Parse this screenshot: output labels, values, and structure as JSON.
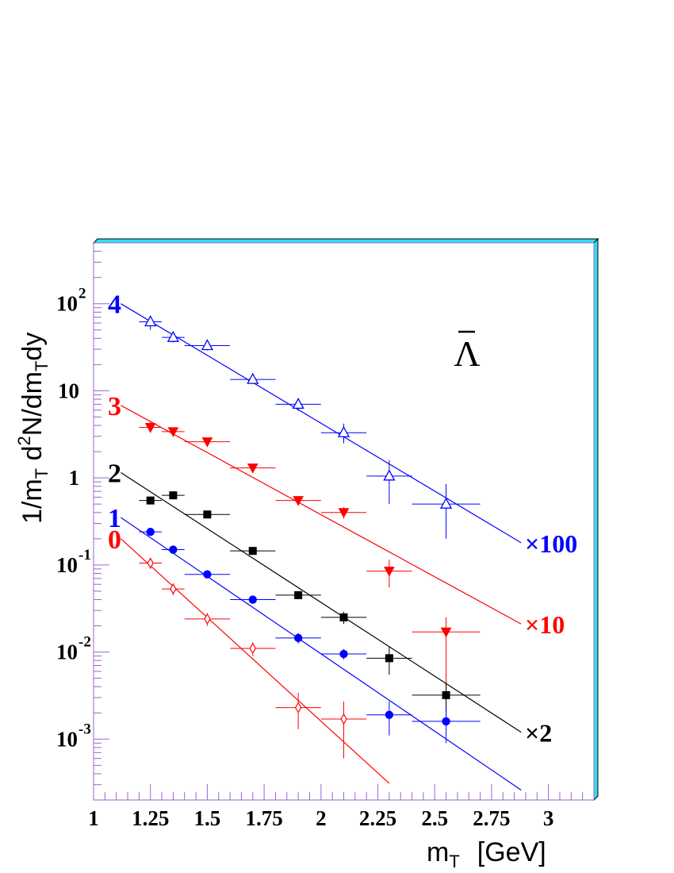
{
  "chart_data": {
    "type": "scatter",
    "title": "",
    "annotation": "Λ",
    "xlabel": "m",
    "xlabel_sub": "T",
    "xlabel_unit": "[GeV]",
    "ylabel": "1/m_T d^2N/dm_T dy",
    "ylabel_parts": [
      "1/m",
      "T",
      " d",
      "2",
      "N/dm",
      "T",
      "dy"
    ],
    "x_scale": "linear",
    "y_scale": "log",
    "xlim": [
      1.0,
      3.2
    ],
    "ylim": [
      0.0002,
      500
    ],
    "x_ticks": [
      {
        "v": 1.0,
        "label": "1"
      },
      {
        "v": 1.25,
        "label": "1.25"
      },
      {
        "v": 1.5,
        "label": "1.5"
      },
      {
        "v": 1.75,
        "label": "1.75"
      },
      {
        "v": 2.0,
        "label": "2"
      },
      {
        "v": 2.25,
        "label": "2.25"
      },
      {
        "v": 2.5,
        "label": "2.5"
      },
      {
        "v": 2.75,
        "label": "2.75"
      },
      {
        "v": 3.0,
        "label": "3"
      }
    ],
    "y_ticks": [
      {
        "v": 0.001,
        "base": "10",
        "exp": "-3"
      },
      {
        "v": 0.01,
        "base": "10",
        "exp": "-2"
      },
      {
        "v": 0.1,
        "base": "10",
        "exp": "-1"
      },
      {
        "v": 1,
        "base": "1",
        "exp": ""
      },
      {
        "v": 10,
        "base": "10",
        "exp": ""
      },
      {
        "v": 100,
        "base": "10",
        "exp": "2"
      }
    ],
    "grid": false,
    "series": [
      {
        "label": "4",
        "factor_label": "×100",
        "color": "#0000ff",
        "marker": "open-triangle",
        "fit": {
          "x": [
            1.12,
            2.88
          ],
          "y": [
            100,
            0.18
          ]
        },
        "points": [
          {
            "x": 1.25,
            "y": 62,
            "xerr": 0.05,
            "ylo": 50,
            "yhi": 73
          },
          {
            "x": 1.35,
            "y": 41,
            "xerr": 0.05,
            "ylo": 36,
            "yhi": 46
          },
          {
            "x": 1.5,
            "y": 33,
            "xerr": 0.1,
            "ylo": 29,
            "yhi": 37
          },
          {
            "x": 1.7,
            "y": 13.5,
            "xerr": 0.1,
            "ylo": 12,
            "yhi": 15
          },
          {
            "x": 1.9,
            "y": 7,
            "xerr": 0.1,
            "ylo": 5.9,
            "yhi": 8.2
          },
          {
            "x": 2.1,
            "y": 3.3,
            "xerr": 0.1,
            "ylo": 2.5,
            "yhi": 4.2
          },
          {
            "x": 2.3,
            "y": 1.05,
            "xerr": 0.1,
            "ylo": 0.5,
            "yhi": 1.6
          },
          {
            "x": 2.55,
            "y": 0.5,
            "xerr": 0.15,
            "ylo": 0.2,
            "yhi": 0.85
          }
        ]
      },
      {
        "label": "3",
        "factor_label": "×10",
        "color": "#ff0000",
        "marker": "filled-down-triangle",
        "fit": {
          "x": [
            1.12,
            2.88
          ],
          "y": [
            6.8,
            0.021
          ]
        },
        "points": [
          {
            "x": 1.25,
            "y": 3.8,
            "xerr": 0.05,
            "ylo": 3.3,
            "yhi": 4.4
          },
          {
            "x": 1.35,
            "y": 3.4,
            "xerr": 0.05,
            "ylo": 3.1,
            "yhi": 3.7
          },
          {
            "x": 1.5,
            "y": 2.6,
            "xerr": 0.1,
            "ylo": 2.4,
            "yhi": 2.8
          },
          {
            "x": 1.7,
            "y": 1.3,
            "xerr": 0.1,
            "ylo": 1.2,
            "yhi": 1.4
          },
          {
            "x": 1.9,
            "y": 0.55,
            "xerr": 0.1,
            "ylo": 0.48,
            "yhi": 0.62
          },
          {
            "x": 2.1,
            "y": 0.4,
            "xerr": 0.1,
            "ylo": 0.34,
            "yhi": 0.46
          },
          {
            "x": 2.3,
            "y": 0.085,
            "xerr": 0.1,
            "ylo": 0.055,
            "yhi": 0.115
          },
          {
            "x": 2.55,
            "y": 0.017,
            "xerr": 0.15,
            "ylo": 0.0015,
            "yhi": 0.025
          }
        ]
      },
      {
        "label": "2",
        "factor_label": "×2",
        "color": "#000000",
        "marker": "filled-square",
        "fit": {
          "x": [
            1.12,
            2.88
          ],
          "y": [
            1.15,
            0.0012
          ]
        },
        "points": [
          {
            "x": 1.25,
            "y": 0.55,
            "xerr": 0.05,
            "ylo": 0.5,
            "yhi": 0.6
          },
          {
            "x": 1.35,
            "y": 0.63,
            "xerr": 0.05,
            "ylo": 0.58,
            "yhi": 0.68
          },
          {
            "x": 1.5,
            "y": 0.38,
            "xerr": 0.1,
            "ylo": 0.35,
            "yhi": 0.41
          },
          {
            "x": 1.7,
            "y": 0.145,
            "xerr": 0.1,
            "ylo": 0.135,
            "yhi": 0.155
          },
          {
            "x": 1.9,
            "y": 0.045,
            "xerr": 0.1,
            "ylo": 0.041,
            "yhi": 0.05
          },
          {
            "x": 2.1,
            "y": 0.025,
            "xerr": 0.1,
            "ylo": 0.021,
            "yhi": 0.029
          },
          {
            "x": 2.3,
            "y": 0.0085,
            "xerr": 0.1,
            "ylo": 0.0055,
            "yhi": 0.0115
          },
          {
            "x": 2.55,
            "y": 0.0032,
            "xerr": 0.15,
            "ylo": 0.002,
            "yhi": 0.0045
          }
        ]
      },
      {
        "label": "1",
        "factor_label": "",
        "color": "#0000ff",
        "marker": "filled-circle",
        "fit": {
          "x": [
            1.12,
            2.88
          ],
          "y": [
            0.35,
            0.00026
          ]
        },
        "points": [
          {
            "x": 1.25,
            "y": 0.24,
            "xerr": 0.05,
            "ylo": 0.22,
            "yhi": 0.26
          },
          {
            "x": 1.35,
            "y": 0.15,
            "xerr": 0.05,
            "ylo": 0.14,
            "yhi": 0.16
          },
          {
            "x": 1.5,
            "y": 0.078,
            "xerr": 0.1,
            "ylo": 0.073,
            "yhi": 0.083
          },
          {
            "x": 1.7,
            "y": 0.04,
            "xerr": 0.1,
            "ylo": 0.037,
            "yhi": 0.043
          },
          {
            "x": 1.9,
            "y": 0.0145,
            "xerr": 0.1,
            "ylo": 0.0125,
            "yhi": 0.0165
          },
          {
            "x": 2.1,
            "y": 0.0095,
            "xerr": 0.1,
            "ylo": 0.0082,
            "yhi": 0.0108
          },
          {
            "x": 2.3,
            "y": 0.0019,
            "xerr": 0.1,
            "ylo": 0.0011,
            "yhi": 0.0027
          },
          {
            "x": 2.55,
            "y": 0.0016,
            "xerr": 0.15,
            "ylo": 0.0009,
            "yhi": 0.0023
          }
        ]
      },
      {
        "label": "0",
        "factor_label": "",
        "color": "#ff0000",
        "marker": "open-diamond",
        "fit": {
          "x": [
            1.12,
            2.3
          ],
          "y": [
            0.2,
            0.00031
          ]
        },
        "points": [
          {
            "x": 1.25,
            "y": 0.105,
            "xerr": 0.05,
            "ylo": 0.09,
            "yhi": 0.12
          },
          {
            "x": 1.35,
            "y": 0.053,
            "xerr": 0.05,
            "ylo": 0.045,
            "yhi": 0.061
          },
          {
            "x": 1.5,
            "y": 0.024,
            "xerr": 0.1,
            "ylo": 0.02,
            "yhi": 0.028
          },
          {
            "x": 1.7,
            "y": 0.011,
            "xerr": 0.1,
            "ylo": 0.009,
            "yhi": 0.013
          },
          {
            "x": 1.9,
            "y": 0.0023,
            "xerr": 0.1,
            "ylo": 0.0013,
            "yhi": 0.0034
          },
          {
            "x": 2.1,
            "y": 0.0017,
            "xerr": 0.1,
            "ylo": 0.0006,
            "yhi": 0.0027
          }
        ]
      }
    ]
  }
}
